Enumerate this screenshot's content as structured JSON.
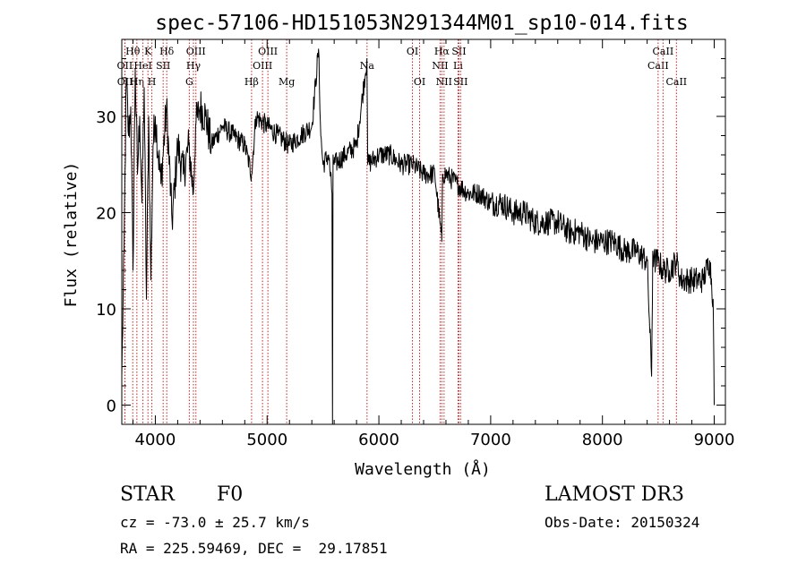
{
  "chart_data": {
    "type": "line",
    "title": "spec-57106-HD151053N291344M01_sp10-014.fits",
    "xlabel": "Wavelength (Å)",
    "ylabel": "Flux (relative)",
    "xlim": [
      3700,
      9100
    ],
    "ylim": [
      -2,
      38
    ],
    "xticks": [
      4000,
      5000,
      6000,
      7000,
      8000,
      9000
    ],
    "yticks": [
      0,
      10,
      20,
      30
    ],
    "grid": false,
    "series": [
      {
        "name": "spectrum",
        "color": "#000000",
        "x": [
          3700,
          3720,
          3740,
          3760,
          3780,
          3800,
          3820,
          3840,
          3860,
          3880,
          3900,
          3920,
          3940,
          3960,
          3980,
          4000,
          4050,
          4100,
          4150,
          4200,
          4250,
          4300,
          4340,
          4360,
          4400,
          4450,
          4500,
          4600,
          4700,
          4800,
          4861,
          4900,
          5000,
          5100,
          5200,
          5300,
          5400,
          5460,
          5480,
          5500,
          5550,
          5580,
          5585,
          5590,
          5600,
          5700,
          5800,
          5893,
          5900,
          6000,
          6100,
          6200,
          6300,
          6400,
          6500,
          6563,
          6570,
          6600,
          6700,
          6800,
          6900,
          7000,
          7100,
          7200,
          7300,
          7400,
          7500,
          7600,
          7700,
          7800,
          7900,
          8000,
          8100,
          8200,
          8300,
          8400,
          8440,
          8450,
          8460,
          8500,
          8540,
          8600,
          8660,
          8700,
          8800,
          8900,
          8960,
          8990,
          9000
        ],
        "values": [
          3,
          16,
          34,
          28,
          31,
          14,
          35,
          24,
          30,
          21,
          33,
          11,
          30,
          13,
          27,
          30,
          23,
          31,
          19,
          27,
          24,
          27,
          22,
          29,
          31,
          30,
          27,
          29,
          28,
          27,
          24,
          30,
          29,
          28,
          27,
          28,
          29,
          37,
          28,
          25,
          26,
          22,
          -2,
          26,
          25,
          26,
          27,
          36,
          25,
          26,
          26,
          25,
          25,
          24,
          24,
          17,
          24,
          24,
          23,
          22,
          22,
          21,
          21,
          20,
          20,
          19,
          19,
          19,
          18,
          18,
          17,
          17,
          17,
          16,
          16,
          15,
          3,
          16,
          15,
          15,
          14,
          14,
          15,
          13,
          13,
          13,
          15,
          11,
          0
        ]
      }
    ],
    "lines": [
      {
        "label": "OII",
        "x": 3727,
        "row": 2,
        "anchor": "middle"
      },
      {
        "label": "OII",
        "x": 3729,
        "row": 3,
        "anchor": "middle"
      },
      {
        "label": "Hθ",
        "x": 3798,
        "row": 1,
        "anchor": "middle"
      },
      {
        "label": "Hη",
        "x": 3835,
        "row": 3,
        "anchor": "middle"
      },
      {
        "label": "HeI",
        "x": 3889,
        "row": 2,
        "anchor": "middle"
      },
      {
        "label": "K",
        "x": 3934,
        "row": 1,
        "anchor": "middle"
      },
      {
        "label": "H",
        "x": 3969,
        "row": 3,
        "anchor": "middle"
      },
      {
        "label": "SII",
        "x": 4070,
        "row": 2,
        "anchor": "middle"
      },
      {
        "label": "Hδ",
        "x": 4102,
        "row": 1,
        "anchor": "middle"
      },
      {
        "label": "G",
        "x": 4304,
        "row": 3,
        "anchor": "middle"
      },
      {
        "label": "Hγ",
        "x": 4341,
        "row": 2,
        "anchor": "middle"
      },
      {
        "label": "OIII",
        "x": 4363,
        "row": 1,
        "anchor": "middle"
      },
      {
        "label": "Hβ",
        "x": 4861,
        "row": 3,
        "anchor": "middle"
      },
      {
        "label": "OIII",
        "x": 4959,
        "row": 2,
        "anchor": "middle"
      },
      {
        "label": "OIII",
        "x": 5007,
        "row": 1,
        "anchor": "middle"
      },
      {
        "label": "Mg",
        "x": 5175,
        "row": 3,
        "anchor": "middle"
      },
      {
        "label": "Na",
        "x": 5894,
        "row": 2,
        "anchor": "middle"
      },
      {
        "label": "OI",
        "x": 6300,
        "row": 1,
        "anchor": "middle"
      },
      {
        "label": "OI",
        "x": 6364,
        "row": 3,
        "anchor": "middle"
      },
      {
        "label": "NII",
        "x": 6548,
        "row": 2,
        "anchor": "middle"
      },
      {
        "label": "Hα",
        "x": 6563,
        "row": 1,
        "anchor": "middle"
      },
      {
        "label": "NII",
        "x": 6583,
        "row": 3,
        "anchor": "middle"
      },
      {
        "label": "Li",
        "x": 6708,
        "row": 2,
        "anchor": "middle"
      },
      {
        "label": "SII",
        "x": 6716,
        "row": 1,
        "anchor": "middle"
      },
      {
        "label": "SII",
        "x": 6731,
        "row": 3,
        "anchor": "middle"
      },
      {
        "label": "CaII",
        "x": 8498,
        "row": 2,
        "anchor": "middle"
      },
      {
        "label": "CaII",
        "x": 8542,
        "row": 1,
        "anchor": "middle"
      },
      {
        "label": "CaII",
        "x": 8662,
        "row": 3,
        "anchor": "middle"
      }
    ]
  },
  "info": {
    "object_class": "STAR",
    "subclass": "F0",
    "survey": "LAMOST DR3",
    "redshift": "cz = -73.0 ± 25.7 km/s",
    "obs_date": "Obs-Date: 20150324",
    "coords": "RA = 225.59469, DEC =  29.17851"
  }
}
